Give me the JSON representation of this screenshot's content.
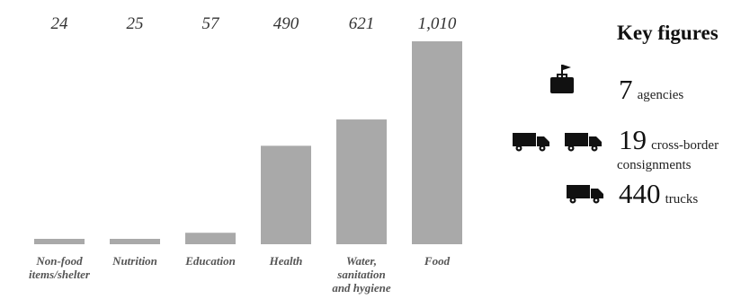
{
  "chart_data": {
    "type": "bar",
    "categories": [
      "Non-food items/shelter",
      "Nutrition",
      "Education",
      "Health",
      "Water, sanitation and hygiene",
      "Food"
    ],
    "category_lines": [
      [
        "Non-food",
        "items/shelter"
      ],
      [
        "Nutrition"
      ],
      [
        "Education"
      ],
      [
        "Health"
      ],
      [
        "Water,",
        "sanitation",
        "and hygiene"
      ],
      [
        "Food"
      ]
    ],
    "values": [
      24,
      25,
      57,
      490,
      621,
      1010
    ],
    "value_labels": [
      "24",
      "25",
      "57",
      "490",
      "621",
      "1,010"
    ],
    "ylim": [
      0,
      1010
    ],
    "bar_color": "#a9a9a9",
    "grid": false
  },
  "key_figures": {
    "title": "Key figures",
    "agencies": {
      "value": "7",
      "label": "agencies",
      "icon": "briefcase-flag-icon"
    },
    "consignments": {
      "value": "19",
      "label_line1": "cross-border",
      "label_line2": "consignments",
      "icon": "truck-icon"
    },
    "trucks": {
      "value": "440",
      "label": "trucks",
      "icon": "truck-icon"
    }
  }
}
